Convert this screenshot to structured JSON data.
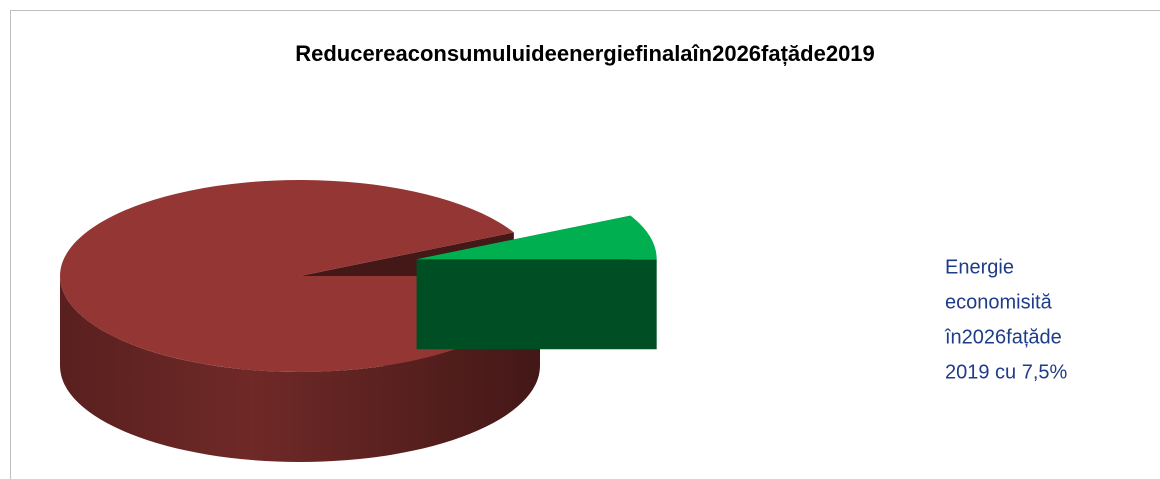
{
  "chart_data": {
    "type": "pie3d",
    "title": "Reducereaconsumuluideenergiefinalaîn2026fațăde2019",
    "categories": [
      null,
      null
    ],
    "values": [
      92.5,
      7.5
    ],
    "colors": [
      "#943634",
      "#00b050"
    ],
    "annotation": [
      "Energie",
      "economisită",
      "în2026fațăde",
      "2019 cu 7,5%"
    ]
  }
}
